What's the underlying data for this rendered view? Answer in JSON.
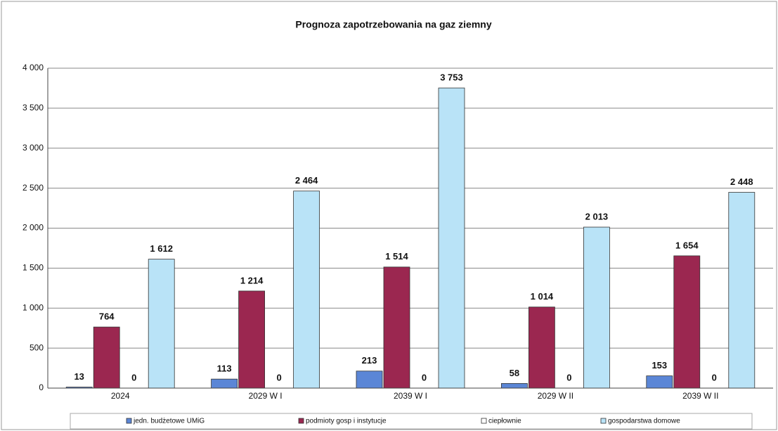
{
  "chart_data": {
    "type": "bar",
    "title": "Prognoza zapotrzebowania na gaz ziemny",
    "categories": [
      "2024",
      "2029 W I",
      "2039 W I",
      "2029 W II",
      "2039 W II"
    ],
    "series": [
      {
        "name": "jedn. budżetowe UMiG",
        "color": "#5b86d6",
        "values": [
          13,
          113,
          213,
          58,
          153
        ],
        "value_labels": [
          "13",
          "113",
          "213",
          "58",
          "153"
        ]
      },
      {
        "name": "podmioty gosp i instytucje",
        "color": "#9b2750",
        "values": [
          764,
          1214,
          1514,
          1014,
          1654
        ],
        "value_labels": [
          "764",
          "1 214",
          "1 514",
          "1 014",
          "1 654"
        ]
      },
      {
        "name": "ciepłownie",
        "color": "#ffffff",
        "values": [
          0,
          0,
          0,
          0,
          0
        ],
        "value_labels": [
          "0",
          "0",
          "0",
          "0",
          "0"
        ]
      },
      {
        "name": "gospodarstwa domowe",
        "color": "#b9e3f7",
        "values": [
          1612,
          2464,
          3753,
          2013,
          2448
        ],
        "value_labels": [
          "1 612",
          "2 464",
          "3 753",
          "2 013",
          "2 448"
        ]
      }
    ],
    "ylim": [
      0,
      4000
    ],
    "yticks": [
      0,
      500,
      {
        "value": 1000,
        "label": "1 000"
      },
      {
        "value": 1500,
        "label": "1 500"
      },
      {
        "value": 2000,
        "label": "2 000"
      },
      {
        "value": 2500,
        "label": "2 500"
      },
      {
        "value": 3000,
        "label": "3 000"
      },
      {
        "value": 3500,
        "label": "3 500"
      },
      {
        "value": 4000,
        "label": "4 000"
      }
    ],
    "grid": true,
    "legend": "bottom"
  }
}
